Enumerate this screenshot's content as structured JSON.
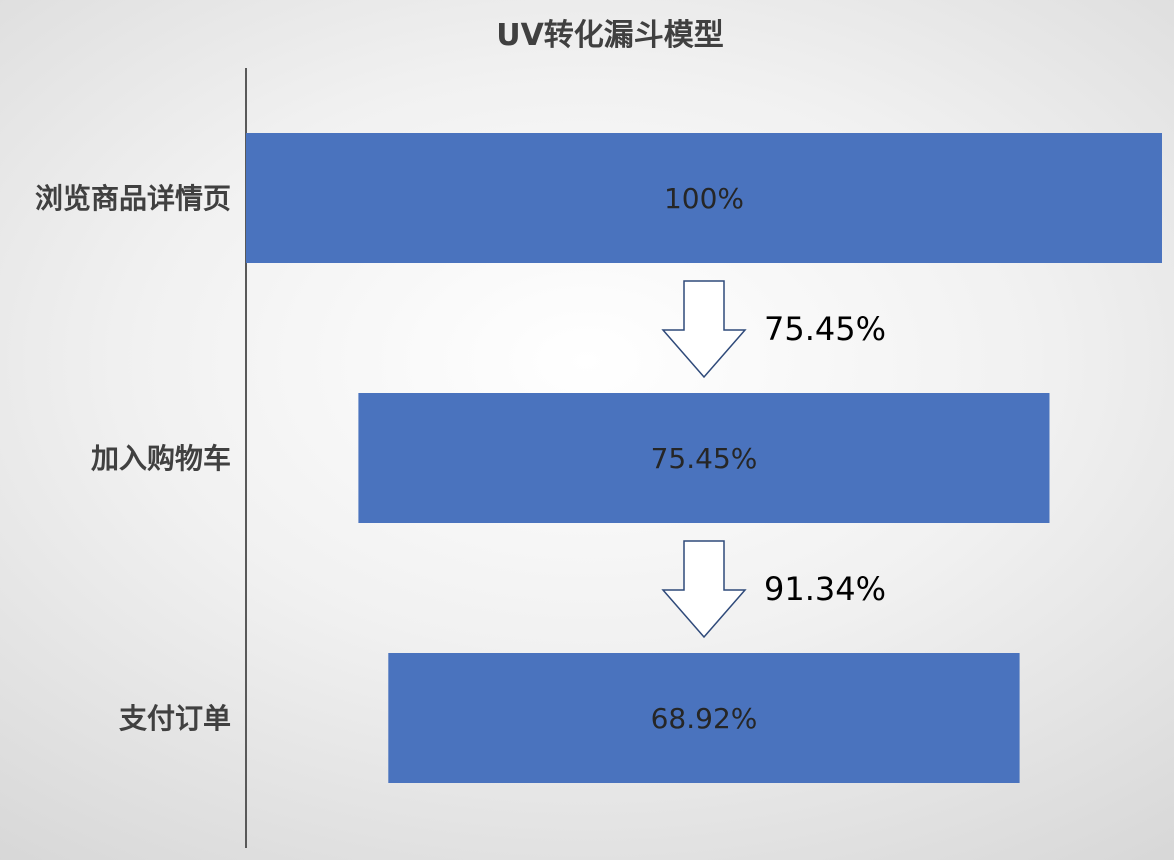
{
  "chart_data": {
    "type": "bar",
    "orientation": "horizontal",
    "style": "funnel",
    "title": "UV转化漏斗模型",
    "categories": [
      "浏览商品详情页",
      "加入购物车",
      "支付订单"
    ],
    "values": [
      100,
      75.45,
      68.92
    ],
    "value_labels": [
      "100%",
      "75.45%",
      "68.92%"
    ],
    "unit": "%",
    "conversion_steps": [
      {
        "from": "浏览商品详情页",
        "to": "加入购物车",
        "rate": 75.45,
        "label": "75.45%"
      },
      {
        "from": "加入购物车",
        "to": "支付订单",
        "rate": 91.34,
        "label": "91.34%"
      }
    ],
    "xlim": [
      0,
      100
    ],
    "grid": false,
    "legend": "none"
  },
  "colors": {
    "bar": "#4a73be",
    "axis": "#595959",
    "arrow_stroke": "#2f4a7a",
    "arrow_fill": "#ffffff"
  }
}
